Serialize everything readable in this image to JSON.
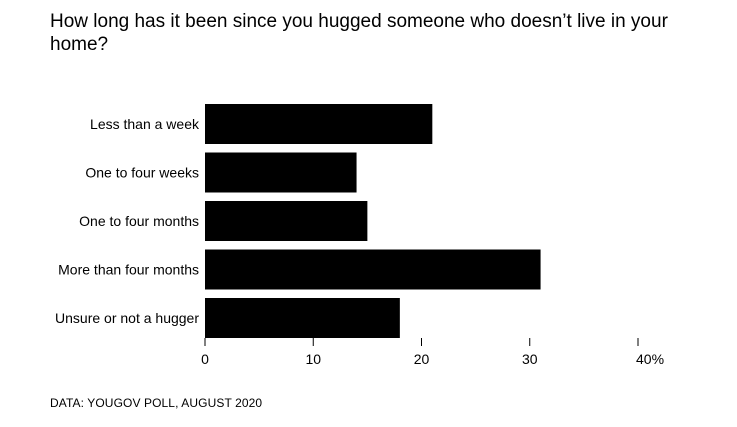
{
  "chart_data": {
    "type": "bar",
    "orientation": "horizontal",
    "title": "How long has it been since you hugged someone who doesn’t live in your home?",
    "categories": [
      "Less than a week",
      "One to four weeks",
      "One to four months",
      "More than four months",
      "Unsure or not a hugger"
    ],
    "values": [
      21,
      14,
      15,
      31,
      18
    ],
    "xlim": [
      0,
      40
    ],
    "ticks": [
      0,
      10,
      20,
      30,
      40
    ],
    "tick_labels": [
      "0",
      "10",
      "20",
      "30",
      "40%"
    ],
    "xlabel": "",
    "ylabel": "",
    "grid": false,
    "bar_color": "#000000",
    "source": "DATA: YOUGOV POLL, AUGUST 2020"
  }
}
